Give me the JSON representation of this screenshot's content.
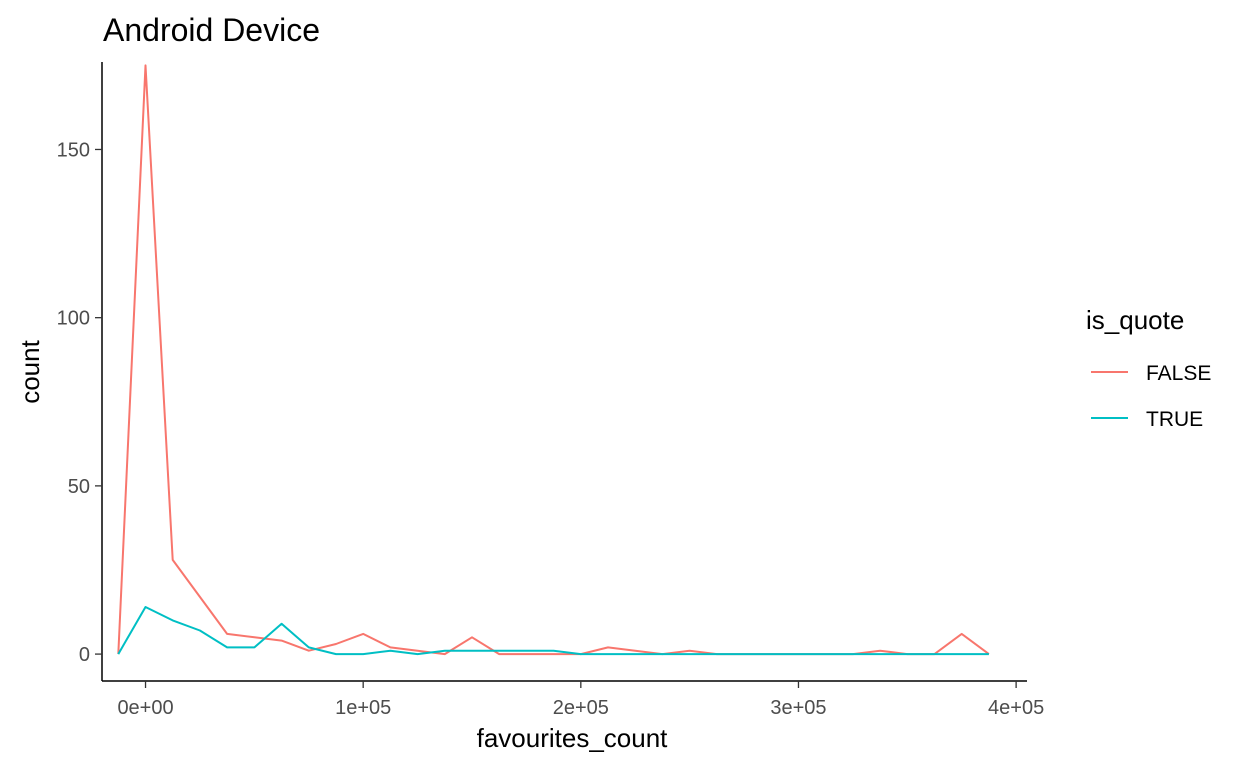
{
  "chart_data": {
    "type": "line",
    "title": "Android Device",
    "xlabel": "favourites_count",
    "ylabel": "count",
    "xlim": [
      -20000,
      405000
    ],
    "ylim": [
      -8,
      176
    ],
    "x_ticks": [
      0,
      100000,
      200000,
      300000,
      400000
    ],
    "x_tick_labels": [
      "0e+00",
      "1e+05",
      "2e+05",
      "3e+05",
      "4e+05"
    ],
    "y_ticks": [
      0,
      50,
      100,
      150
    ],
    "y_tick_labels": [
      "0",
      "50",
      "100",
      "150"
    ],
    "grid": false,
    "legend": {
      "title": "is_quote",
      "position": "right"
    },
    "series": [
      {
        "name": "FALSE",
        "color": "#F8766D",
        "x": [
          -12500,
          0,
          12500,
          25000,
          37500,
          50000,
          62500,
          75000,
          87500,
          100000,
          112500,
          125000,
          137500,
          150000,
          162500,
          175000,
          187500,
          200000,
          212500,
          225000,
          237500,
          250000,
          262500,
          275000,
          287500,
          300000,
          312500,
          325000,
          337500,
          350000,
          362500,
          375000,
          387500
        ],
        "values": [
          0,
          175,
          28,
          17,
          6,
          5,
          4,
          1,
          3,
          6,
          2,
          1,
          0,
          5,
          0,
          0,
          0,
          0,
          2,
          1,
          0,
          1,
          0,
          0,
          0,
          0,
          0,
          0,
          1,
          0,
          0,
          6,
          0
        ]
      },
      {
        "name": "TRUE",
        "color": "#00BFC4",
        "x": [
          -12500,
          0,
          12500,
          25000,
          37500,
          50000,
          62500,
          75000,
          87500,
          100000,
          112500,
          125000,
          137500,
          150000,
          162500,
          175000,
          187500,
          200000,
          212500,
          225000,
          237500,
          250000,
          262500,
          275000,
          287500,
          300000,
          312500,
          325000,
          337500,
          350000,
          362500,
          375000,
          387500
        ],
        "values": [
          0,
          14,
          10,
          7,
          2,
          2,
          9,
          2,
          0,
          0,
          1,
          0,
          1,
          1,
          1,
          1,
          1,
          0,
          0,
          0,
          0,
          0,
          0,
          0,
          0,
          0,
          0,
          0,
          0,
          0,
          0,
          0,
          0
        ]
      }
    ]
  }
}
